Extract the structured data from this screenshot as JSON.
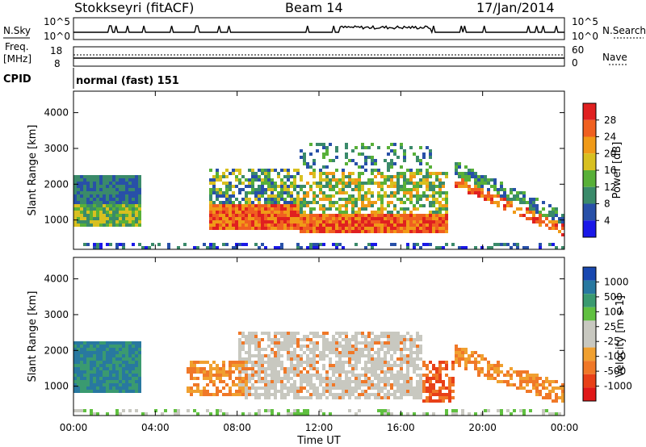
{
  "header": {
    "station": "Stokkseyri (fitACF)",
    "beam": "Beam 14",
    "date": "17/Jan/2014"
  },
  "nsky_panel": {
    "left_label": "N.Sky",
    "right_label": "N.Search",
    "left_ticks": [
      "10^5",
      "10^0"
    ],
    "right_ticks": [
      "10^5",
      "10^0"
    ]
  },
  "freq_panel": {
    "left_label_line1": "Freq.",
    "left_label_line2": "[MHz]",
    "right_label": "Nave",
    "left_ticks": [
      "18",
      "8"
    ],
    "right_ticks": [
      "60",
      "0"
    ]
  },
  "cpid_panel": {
    "label": "CPID",
    "value": "normal (fast) 151"
  },
  "chart_data": [
    {
      "type": "heatmap",
      "panel": "power",
      "ylabel": "Slant Range [km]",
      "yticks": [
        1000,
        2000,
        3000,
        4000
      ],
      "ylim": [
        180,
        4600
      ],
      "colorbar_label": "Power [dB]",
      "colorbar_ticks": [
        "28",
        "24",
        "20",
        "16",
        "12",
        "8",
        "4"
      ],
      "colorbar_colors": [
        "#e02020",
        "#f06020",
        "#f09a18",
        "#d8c020",
        "#58b038",
        "#3a8a6a",
        "#2850a8",
        "#1a18e8"
      ],
      "echo_regions": [
        {
          "t_start": "00:00",
          "t_end": "03:20",
          "range_km": [
            900,
            2300
          ]
        },
        {
          "t_start": "06:30",
          "t_end": "11:00",
          "range_km": [
            800,
            2500
          ]
        },
        {
          "t_start": "11:00",
          "t_end": "18:30",
          "range_km": [
            800,
            3200
          ]
        },
        {
          "t_start": "18:30",
          "t_end": "24:00",
          "range_km": [
            400,
            2000
          ]
        }
      ]
    },
    {
      "type": "heatmap",
      "panel": "velocity",
      "ylabel": "Slant Range [km]",
      "yticks": [
        1000,
        2000,
        3000,
        4000
      ],
      "ylim": [
        180,
        4600
      ],
      "colorbar_label": "Velocity [m s-1]",
      "colorbar_ticks": [
        "1000",
        "500",
        "100",
        "25",
        "-25",
        "-100",
        "-500",
        "-1000"
      ],
      "colorbar_colors": [
        "#1848b0",
        "#2878a0",
        "#3a9a70",
        "#60c040",
        "#c8c8c0",
        "#c8c8c0",
        "#f0a030",
        "#f07828",
        "#e84018",
        "#e01818"
      ],
      "xlabel": "Time UT",
      "xticks": [
        "00:00",
        "04:00",
        "08:00",
        "12:00",
        "16:00",
        "20:00",
        "00:00"
      ],
      "xlim_hours": [
        0,
        24
      ]
    }
  ]
}
